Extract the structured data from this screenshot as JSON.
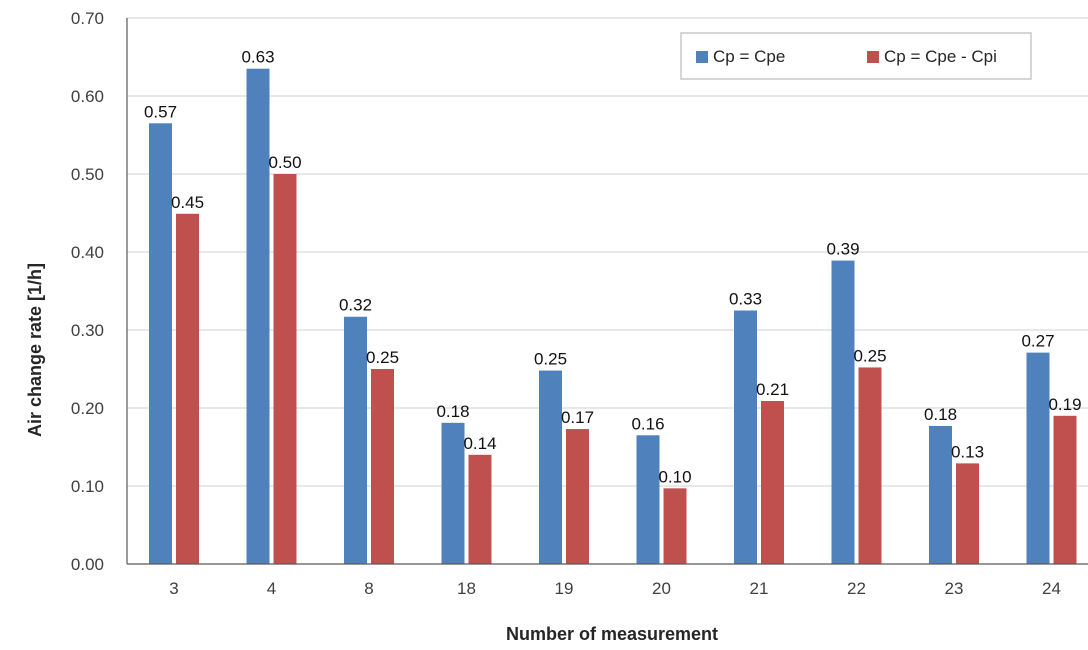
{
  "chart_data": {
    "type": "bar",
    "title": "",
    "xlabel": "Number of measurement",
    "ylabel": "Air change rate  [1/h]",
    "ylim": [
      0,
      0.7
    ],
    "yticks": [
      "0.00",
      "0.10",
      "0.20",
      "0.30",
      "0.40",
      "0.50",
      "0.60",
      "0.70"
    ],
    "categories": [
      "3",
      "4",
      "8",
      "18",
      "19",
      "20",
      "21",
      "22",
      "23",
      "24"
    ],
    "series": [
      {
        "name": "Cp = Cpe",
        "color": "#4f81bd",
        "values": [
          0.565,
          0.635,
          0.317,
          0.181,
          0.248,
          0.165,
          0.325,
          0.389,
          0.177,
          0.271
        ],
        "labels": [
          "0.57",
          "0.63",
          "0.32",
          "0.18",
          "0.25",
          "0.16",
          "0.33",
          "0.39",
          "0.18",
          "0.27"
        ]
      },
      {
        "name": "Cp = Cpe - Cpi",
        "color": "#c0504d",
        "values": [
          0.449,
          0.5,
          0.25,
          0.14,
          0.173,
          0.097,
          0.209,
          0.252,
          0.129,
          0.19
        ],
        "labels": [
          "0.45",
          "0.50",
          "0.25",
          "0.14",
          "0.17",
          "0.10",
          "0.21",
          "0.25",
          "0.13",
          "0.19"
        ]
      }
    ],
    "grid": "horizontal",
    "legend_position": "top-right"
  }
}
